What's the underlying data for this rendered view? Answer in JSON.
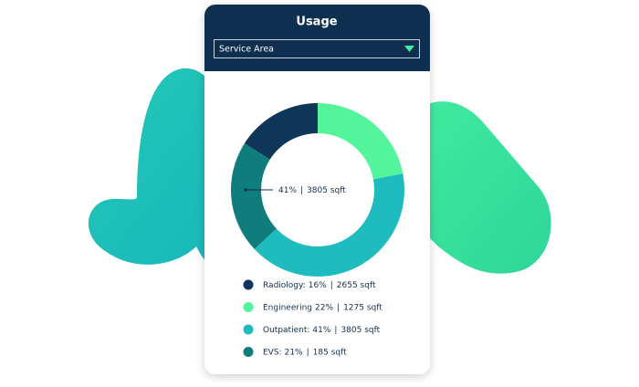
{
  "ui": {
    "dropdown": "Service Area"
  },
  "chart_data": {
    "type": "pie",
    "title": "Usage",
    "categories": [
      "Radiology:",
      "Engineering",
      "Outpatient:",
      "EVS:"
    ],
    "values": [
      16,
      22,
      41,
      21
    ],
    "value_labels": [
      "16%",
      "22%",
      "41%",
      "21%"
    ],
    "area_labels": [
      "2655 sqft",
      "1275 sqft",
      "3805 sqft",
      "185 sqft"
    ],
    "separator": "|",
    "colors": [
      "#0d3658",
      "#52f59b",
      "#1fbcbf",
      "#0f7d7c"
    ],
    "selected_index": 2
  }
}
